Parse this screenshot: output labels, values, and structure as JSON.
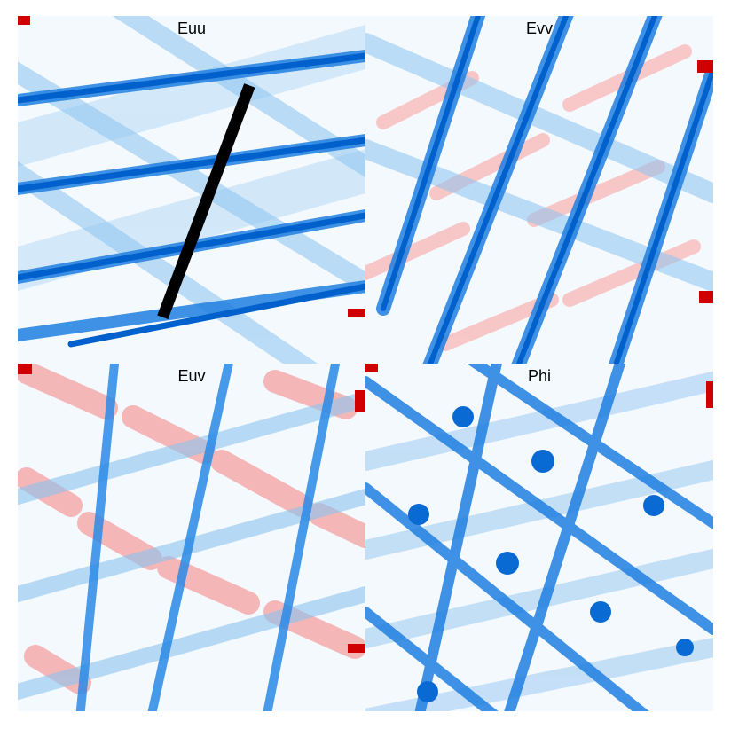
{
  "panels": [
    {
      "id": "euu",
      "label": "Euu"
    },
    {
      "id": "evv",
      "label": "Evv"
    },
    {
      "id": "euv",
      "label": "Euv"
    },
    {
      "id": "phi",
      "label": "Phi"
    }
  ],
  "colors": {
    "band_dark_blue": "#0064d2",
    "band_mid_blue": "#3a95e8",
    "band_light_blue": "#b5dbf7",
    "background": "#f2f8fd",
    "positive_red": "#f08a8a",
    "deep_red": "#d10a0a",
    "text": "#000000"
  }
}
